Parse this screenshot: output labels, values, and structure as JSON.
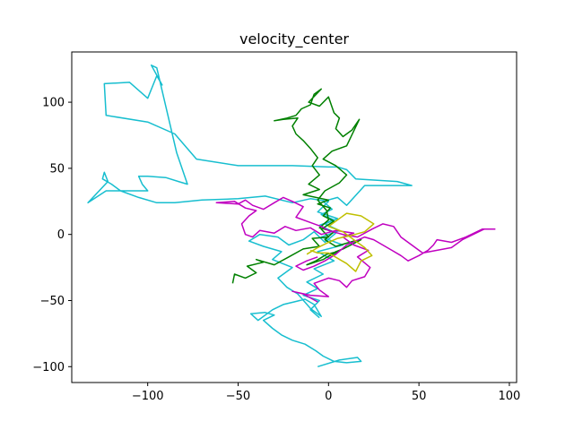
{
  "chart_data": {
    "type": "line",
    "title": "velocity_center",
    "xlabel": "",
    "ylabel": "",
    "xlim": [
      -142,
      104
    ],
    "ylim": [
      -112,
      138
    ],
    "xticks": [
      -100,
      -50,
      0,
      50,
      100
    ],
    "yticks": [
      -100,
      -50,
      0,
      50,
      100
    ],
    "xtick_labels": [
      "−100",
      "−50",
      "0",
      "50",
      "100"
    ],
    "ytick_labels": [
      "−100",
      "−50",
      "0",
      "50",
      "100"
    ],
    "grid": false,
    "legend": false,
    "series": [
      {
        "color": "#17becf",
        "points": [
          [
            -6,
            -100
          ],
          [
            6,
            -95
          ],
          [
            16,
            -93
          ],
          [
            18,
            -96
          ],
          [
            10,
            -97
          ],
          [
            3,
            -96
          ],
          [
            -3,
            -92
          ],
          [
            -7,
            -88
          ],
          [
            -13,
            -83
          ],
          [
            -20,
            -80
          ],
          [
            -26,
            -76
          ],
          [
            -31,
            -71
          ],
          [
            -36,
            -65
          ],
          [
            -30,
            -61
          ],
          [
            -35,
            -59
          ],
          [
            -43,
            -60
          ],
          [
            -39,
            -65
          ],
          [
            -31,
            -57
          ],
          [
            -25,
            -53
          ],
          [
            -19,
            -51
          ],
          [
            -13,
            -49
          ],
          [
            -8,
            -53
          ],
          [
            -4,
            -62
          ],
          [
            -10,
            -56
          ],
          [
            -17,
            -45
          ],
          [
            -23,
            -40
          ],
          [
            -28,
            -33
          ],
          [
            -20,
            -25
          ],
          [
            -31,
            -19
          ],
          [
            -26,
            -13
          ],
          [
            -36,
            -9
          ],
          [
            -44,
            -5
          ],
          [
            -38,
            0
          ],
          [
            -28,
            -2
          ],
          [
            -22,
            -8
          ],
          [
            -14,
            -4
          ],
          [
            -8,
            2
          ],
          [
            -2,
            -6
          ],
          [
            4,
            1
          ],
          [
            -5,
            7
          ],
          [
            3,
            11
          ],
          [
            -4,
            15
          ],
          [
            2,
            19
          ],
          [
            -3,
            25
          ],
          [
            5,
            28
          ],
          [
            10,
            22
          ],
          [
            20,
            37
          ],
          [
            46,
            37
          ],
          [
            38,
            40
          ],
          [
            15,
            42
          ],
          [
            10,
            49
          ],
          [
            5,
            51
          ],
          [
            0,
            51
          ],
          [
            -20,
            52
          ],
          [
            -35,
            52
          ],
          [
            -50,
            52
          ],
          [
            -73,
            57
          ],
          [
            -85,
            76
          ],
          [
            -100,
            85
          ],
          [
            -123,
            90
          ],
          [
            -124,
            114
          ],
          [
            -110,
            115
          ],
          [
            -100,
            103
          ],
          [
            -95,
            120
          ],
          [
            -92,
            113
          ],
          [
            -98,
            128
          ],
          [
            -95,
            126
          ],
          [
            -84,
            62
          ],
          [
            -78,
            38
          ],
          [
            -83,
            40
          ],
          [
            -90,
            43
          ],
          [
            -100,
            44
          ],
          [
            -105,
            44
          ],
          [
            -103,
            38
          ],
          [
            -100,
            33
          ],
          [
            -110,
            33
          ],
          [
            -123,
            33
          ],
          [
            -133,
            24
          ],
          [
            -122,
            40
          ],
          [
            -124,
            47
          ],
          [
            -125,
            42
          ],
          [
            -120,
            38
          ],
          [
            -115,
            33
          ],
          [
            -105,
            28
          ],
          [
            -95,
            24
          ],
          [
            -85,
            24
          ],
          [
            -70,
            26
          ],
          [
            -50,
            27
          ],
          [
            -35,
            29
          ],
          [
            -20,
            24
          ],
          [
            -10,
            27
          ],
          [
            0,
            25
          ],
          [
            -6,
            17
          ],
          [
            5,
            12
          ],
          [
            -2,
            8
          ],
          [
            6,
            3
          ],
          [
            -4,
            -2
          ],
          [
            8,
            -8
          ],
          [
            -6,
            -13
          ],
          [
            3,
            -20
          ],
          [
            -8,
            -26
          ],
          [
            -3,
            -30
          ],
          [
            -12,
            -36
          ],
          [
            -6,
            -41
          ],
          [
            -14,
            -46
          ],
          [
            -5,
            -50
          ],
          [
            -10,
            -57
          ],
          [
            -5,
            -63
          ]
        ]
      },
      {
        "color": "#008000",
        "points": [
          [
            -53,
            -37
          ],
          [
            -52,
            -30
          ],
          [
            -46,
            -33
          ],
          [
            -40,
            -29
          ],
          [
            -45,
            -24
          ],
          [
            -36,
            -21
          ],
          [
            -40,
            -19
          ],
          [
            -30,
            -23
          ],
          [
            -22,
            -17
          ],
          [
            -14,
            -11
          ],
          [
            -5,
            -9
          ],
          [
            -9,
            -3
          ],
          [
            0,
            -2
          ],
          [
            -4,
            4
          ],
          [
            3,
            10
          ],
          [
            -3,
            14
          ],
          [
            1,
            20
          ],
          [
            -6,
            23
          ],
          [
            0,
            26
          ],
          [
            -14,
            30
          ],
          [
            -5,
            34
          ],
          [
            -11,
            38
          ],
          [
            -5,
            45
          ],
          [
            -9,
            52
          ],
          [
            -6,
            58
          ],
          [
            -10,
            65
          ],
          [
            -14,
            71
          ],
          [
            -18,
            76
          ],
          [
            -20,
            82
          ],
          [
            -17,
            88
          ],
          [
            -25,
            87
          ],
          [
            -30,
            86
          ],
          [
            -23,
            88
          ],
          [
            -18,
            90
          ],
          [
            -15,
            95
          ],
          [
            -10,
            98
          ],
          [
            -8,
            106
          ],
          [
            -4,
            110
          ],
          [
            -11,
            100
          ],
          [
            -5,
            97
          ],
          [
            0,
            104
          ],
          [
            3,
            92
          ],
          [
            6,
            88
          ],
          [
            4,
            80
          ],
          [
            8,
            74
          ],
          [
            13,
            79
          ],
          [
            17,
            87
          ],
          [
            10,
            67
          ],
          [
            2,
            63
          ],
          [
            -3,
            57
          ],
          [
            4,
            52
          ],
          [
            10,
            45
          ],
          [
            6,
            39
          ],
          [
            -2,
            33
          ],
          [
            -6,
            26
          ],
          [
            -1,
            18
          ],
          [
            0,
            11
          ],
          [
            -5,
            5
          ],
          [
            3,
            2
          ],
          [
            -2,
            -4
          ],
          [
            4,
            -9
          ],
          [
            14,
            -5
          ],
          [
            18,
            -4
          ],
          [
            8,
            -11
          ],
          [
            4,
            -13
          ],
          [
            -3,
            -19
          ],
          [
            -12,
            -23
          ],
          [
            -7,
            -20
          ],
          [
            -1,
            -15
          ],
          [
            5,
            -13
          ],
          [
            -2,
            -18
          ]
        ]
      },
      {
        "color": "#c000c0",
        "points": [
          [
            -6,
            -51
          ],
          [
            -14,
            -45
          ],
          [
            -20,
            -43
          ],
          [
            -10,
            -46
          ],
          [
            0,
            -47
          ],
          [
            -5,
            -42
          ],
          [
            -8,
            -37
          ],
          [
            0,
            -33
          ],
          [
            6,
            -35
          ],
          [
            10,
            -40
          ],
          [
            13,
            -35
          ],
          [
            20,
            -32
          ],
          [
            23,
            -25
          ],
          [
            16,
            -17
          ],
          [
            22,
            -12
          ],
          [
            14,
            -8
          ],
          [
            8,
            -2
          ],
          [
            14,
            1
          ],
          [
            4,
            3
          ],
          [
            -4,
            0
          ],
          [
            -10,
            5
          ],
          [
            -18,
            3
          ],
          [
            -24,
            6
          ],
          [
            -30,
            1
          ],
          [
            -38,
            3
          ],
          [
            -42,
            -2
          ],
          [
            -46,
            0
          ],
          [
            -48,
            8
          ],
          [
            -44,
            14
          ],
          [
            -40,
            18
          ],
          [
            -46,
            20
          ],
          [
            -52,
            25
          ],
          [
            -62,
            24
          ],
          [
            -50,
            23
          ],
          [
            -46,
            26
          ],
          [
            -42,
            22
          ],
          [
            -36,
            19
          ],
          [
            -30,
            24
          ],
          [
            -25,
            28
          ],
          [
            -20,
            25
          ],
          [
            -14,
            21
          ],
          [
            -18,
            13
          ],
          [
            -12,
            10
          ],
          [
            -4,
            6
          ],
          [
            0,
            3
          ],
          [
            8,
            0
          ],
          [
            16,
            -2
          ],
          [
            24,
            4
          ],
          [
            30,
            8
          ],
          [
            36,
            6
          ],
          [
            40,
            -2
          ],
          [
            46,
            -8
          ],
          [
            52,
            -14
          ],
          [
            60,
            -12
          ],
          [
            68,
            -10
          ],
          [
            74,
            -4
          ],
          [
            80,
            0
          ],
          [
            86,
            4
          ],
          [
            92,
            4
          ],
          [
            85,
            4
          ],
          [
            76,
            -2
          ],
          [
            68,
            -6
          ],
          [
            60,
            -4
          ],
          [
            58,
            -8
          ],
          [
            55,
            -12
          ],
          [
            50,
            -16
          ],
          [
            44,
            -20
          ],
          [
            40,
            -16
          ],
          [
            35,
            -12
          ],
          [
            30,
            -8
          ],
          [
            25,
            -4
          ],
          [
            20,
            -2
          ],
          [
            10,
            -8
          ],
          [
            4,
            -15
          ],
          [
            -2,
            -20
          ],
          [
            -8,
            -24
          ],
          [
            -14,
            -27
          ],
          [
            -18,
            -24
          ],
          [
            -12,
            -20
          ],
          [
            -6,
            -17
          ]
        ]
      },
      {
        "color": "#bfbf00",
        "points": [
          [
            -12,
            -15
          ],
          [
            -6,
            -10
          ],
          [
            0,
            -6
          ],
          [
            5,
            -3
          ],
          [
            12,
            -1
          ],
          [
            20,
            2
          ],
          [
            25,
            8
          ],
          [
            18,
            14
          ],
          [
            10,
            16
          ],
          [
            4,
            10
          ],
          [
            0,
            6
          ],
          [
            8,
            2
          ],
          [
            14,
            -4
          ],
          [
            20,
            -10
          ],
          [
            24,
            -16
          ],
          [
            18,
            -20
          ],
          [
            15,
            -28
          ],
          [
            10,
            -22
          ],
          [
            5,
            -18
          ],
          [
            0,
            -14
          ],
          [
            -6,
            -14
          ],
          [
            -10,
            -12
          ]
        ]
      }
    ]
  }
}
